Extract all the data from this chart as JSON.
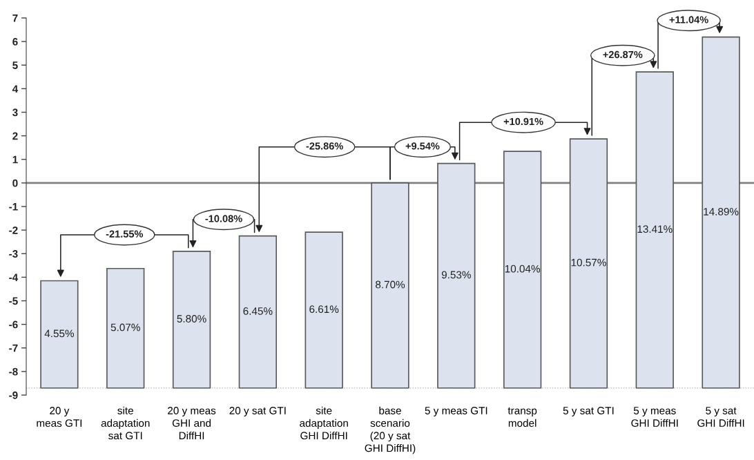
{
  "chart_data": {
    "type": "bar",
    "categories": [
      "20 y\nmeas GTI",
      "site\nadaptation\nsat GTI",
      "20 y meas\nGHI and\nDiffHI",
      "20 y sat GTI",
      "site\nadaptation\nGHI DiffHI",
      "base\nscenario\n(20 y sat\nGHI DiffHI)",
      "5 y meas GTI",
      "transp\nmodel",
      "5 y sat GTI",
      "5 y meas\nGHI DiffHI",
      "5 y sat\nGHI DiffHI"
    ],
    "values": [
      4.55,
      5.07,
      5.8,
      6.45,
      6.61,
      8.7,
      9.53,
      10.04,
      10.57,
      13.41,
      14.89
    ],
    "base": [
      -8.7,
      -8.7,
      -8.7,
      -8.7,
      -8.7,
      -8.7,
      -8.7,
      -8.7,
      -8.7,
      -8.7,
      -8.7
    ],
    "value_labels": [
      "4.55%",
      "5.07%",
      "5.80%",
      "6.45%",
      "6.61%",
      "8.70%",
      "9.53%",
      "10.04%",
      "10.57%",
      "13.41%",
      "14.89%"
    ],
    "color": "#dce3ee",
    "ylim": [
      -9,
      7
    ],
    "yticks": [
      -9,
      -8,
      -7,
      -6,
      -5,
      -4,
      -3,
      -2,
      -1,
      0,
      1,
      2,
      3,
      4,
      5,
      6,
      7
    ],
    "ref_lines": [
      {
        "axis": "y",
        "value": 0,
        "color": "#808080",
        "line_style": "solid"
      },
      {
        "axis": "y",
        "value": -8.7,
        "color": "#bfbfbf",
        "line_style": "dotted"
      }
    ],
    "annotations": [
      "-21.55%",
      "-10.08%",
      "-25.86%",
      "+9.54%",
      "+10.91%",
      "+26.87%",
      "+11.04%"
    ],
    "grid": false,
    "legend": false
  }
}
